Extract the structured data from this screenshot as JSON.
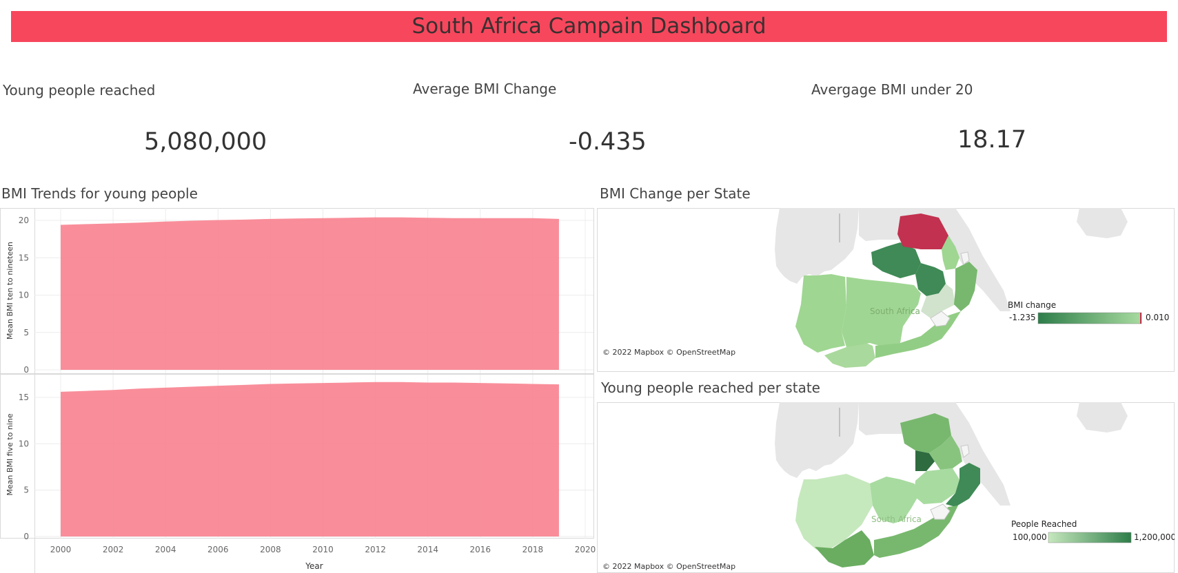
{
  "dashboard": {
    "title": "South Africa Campain Dashboard",
    "title_color": "#f7475d"
  },
  "kpis": [
    {
      "label": "Young people reached",
      "value": "5,080,000"
    },
    {
      "label": "Average BMI Change",
      "value": "-0.435"
    },
    {
      "label": "Avergage BMI under 20",
      "value": "18.17"
    }
  ],
  "trends": {
    "title": "BMI Trends for young people",
    "fill_color": "#f8828f",
    "xlabel": "Year",
    "x_ticks": [
      "2000",
      "2002",
      "2004",
      "2006",
      "2008",
      "2010",
      "2012",
      "2014",
      "2016",
      "2018",
      "2020"
    ]
  },
  "chart_data": [
    {
      "type": "area",
      "ylabel": "Mean BMI ten to nineteen",
      "x": [
        2000,
        2001,
        2002,
        2003,
        2004,
        2005,
        2006,
        2007,
        2008,
        2009,
        2010,
        2011,
        2012,
        2013,
        2014,
        2015,
        2016,
        2017,
        2018,
        2019
      ],
      "values": [
        19.4,
        19.5,
        19.6,
        19.7,
        19.85,
        19.95,
        20.05,
        20.1,
        20.2,
        20.25,
        20.3,
        20.35,
        20.4,
        20.4,
        20.35,
        20.3,
        20.3,
        20.3,
        20.3,
        20.2
      ],
      "ylim": [
        0,
        21
      ],
      "y_ticks": [
        "0",
        "5",
        "10",
        "15",
        "20"
      ],
      "xlim": [
        1990,
        2020
      ]
    },
    {
      "type": "area",
      "ylabel": "Mean BMI five to nine",
      "x": [
        2000,
        2001,
        2002,
        2003,
        2004,
        2005,
        2006,
        2007,
        2008,
        2009,
        2010,
        2011,
        2012,
        2013,
        2014,
        2015,
        2016,
        2017,
        2018,
        2019
      ],
      "values": [
        15.6,
        15.7,
        15.8,
        15.95,
        16.05,
        16.15,
        16.25,
        16.35,
        16.45,
        16.5,
        16.55,
        16.6,
        16.65,
        16.65,
        16.6,
        16.6,
        16.55,
        16.5,
        16.45,
        16.4
      ],
      "ylim": [
        0,
        17.2
      ],
      "y_ticks": [
        "0",
        "5",
        "10",
        "15"
      ],
      "xlim": [
        1990,
        2020
      ]
    }
  ],
  "map_change": {
    "title": "BMI Change per State",
    "country_label": "South Africa",
    "copyright": "© 2022 Mapbox © OpenStreetMap",
    "legend_title": "BMI change",
    "legend_min": "-1.235",
    "legend_max": "0.010",
    "low_color": "#a8dba0",
    "high_color": "#2e7d4a",
    "highlight_color": "#c2314f"
  },
  "map_reached": {
    "title": "Young people reached per state",
    "country_label": "South Africa",
    "copyright": "© 2022 Mapbox © OpenStreetMap",
    "legend_title": "People Reached",
    "legend_min": "100,000",
    "legend_max": "1,200,000",
    "low_color": "#c6e8bd",
    "high_color": "#2e7d4a"
  }
}
